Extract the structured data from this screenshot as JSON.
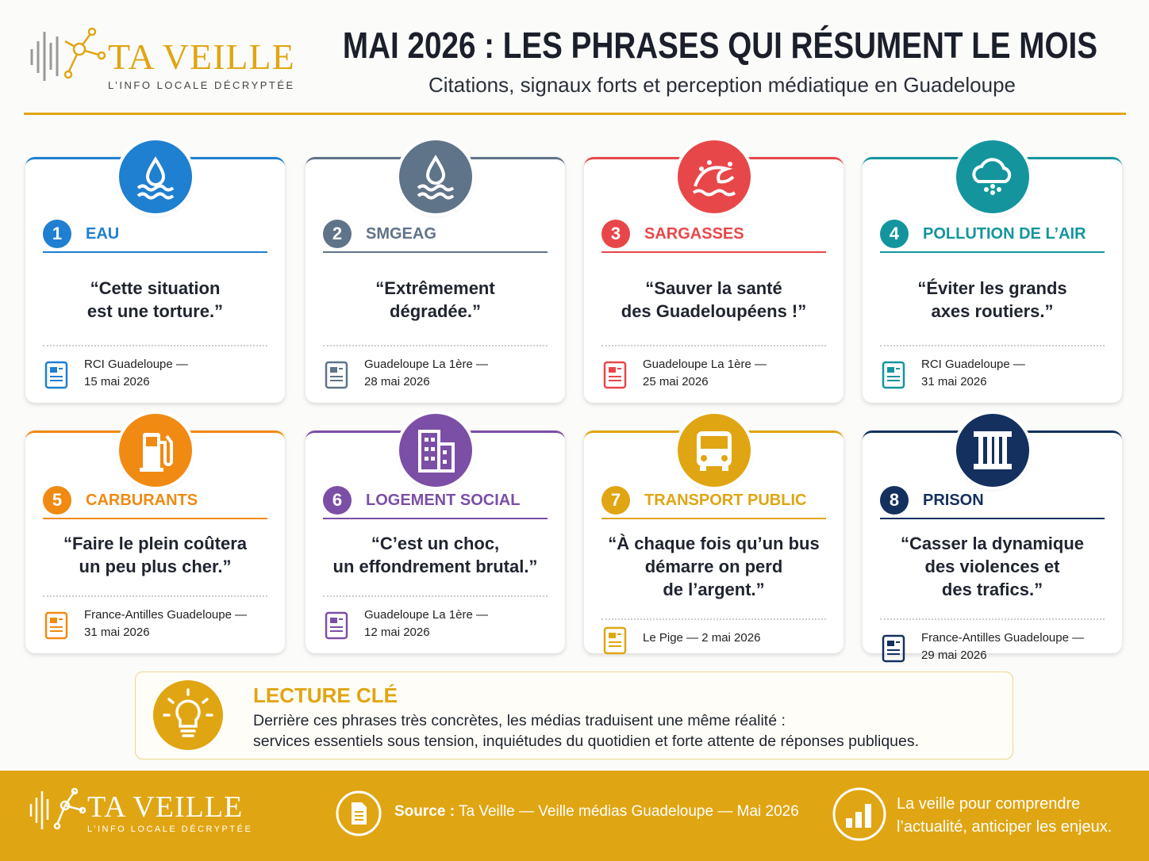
{
  "header": {
    "brand": "TA VEILLE",
    "tagline": "L’INFO LOCALE DÉCRYPTÉE",
    "title": "MAI 2026 : LES PHRASES QUI RÉSUMENT LE MOIS",
    "subtitle": "Citations, signaux forts et perception médiatique en Guadeloupe"
  },
  "cards": [
    {
      "number": "1",
      "label": "EAU",
      "color": "#1f7fd0",
      "quote": [
        "“Cette situation",
        "est une torture.”"
      ],
      "source": [
        "RCI Guadeloupe —",
        "15 mai 2026"
      ]
    },
    {
      "number": "2",
      "label": "SMGEAG",
      "color": "#5f7389",
      "quote": [
        "“Extrêmement",
        "dégradée.”"
      ],
      "source": [
        "Guadeloupe La 1ère —",
        "28 mai 2026"
      ]
    },
    {
      "number": "3",
      "label": "SARGASSES",
      "color": "#e8474a",
      "quote": [
        "“Sauver la santé",
        "des Guadeloupéens !”"
      ],
      "source": [
        "Guadeloupe La 1ère —",
        "25 mai 2026"
      ]
    },
    {
      "number": "4",
      "label": "POLLUTION DE L’AIR",
      "color": "#14959e",
      "quote": [
        "“Éviter les grands",
        "axes routiers.”"
      ],
      "source": [
        "RCI Guadeloupe —",
        "31 mai 2026"
      ]
    },
    {
      "number": "5",
      "label": "CARBURANTS",
      "color": "#f08a12",
      "quote": [
        "“Faire le plein coûtera",
        "un peu plus cher.”"
      ],
      "source": [
        "France-Antilles Guadeloupe —",
        "31 mai 2026"
      ]
    },
    {
      "number": "6",
      "label": "LOGEMENT SOCIAL",
      "color": "#7c4fa6",
      "quote": [
        "“C’est un choc,",
        "un effondrement brutal.”"
      ],
      "source": [
        "Guadeloupe La 1ère —",
        "12 mai 2026"
      ]
    },
    {
      "number": "7",
      "label": "TRANSPORT PUBLIC",
      "color": "#e0a512",
      "quote": [
        "“À chaque fois qu’un bus",
        "démarre on perd",
        "de l’argent.”"
      ],
      "source": [
        "Le Pige — 2 mai 2026"
      ]
    },
    {
      "number": "8",
      "label": "PRISON",
      "color": "#14305e",
      "quote": [
        "“Casser la dynamique",
        "des violences et",
        "des trafics.”"
      ],
      "source": [
        "France-Antilles Guadeloupe —",
        "29 mai 2026"
      ]
    }
  ],
  "key_reading": {
    "title": "LECTURE CLÉ",
    "lines": [
      "Derrière ces phrases très concrètes, les médias traduisent une même réalité :",
      "services essentiels sous tension, inquiétudes du quotidien et forte attente de réponses publiques."
    ]
  },
  "footer": {
    "brand": "TA VEILLE",
    "tagline": "L’INFO LOCALE DÉCRYPTÉE",
    "source_label": "Source :",
    "source_text": "Ta Veille — Veille médias Guadeloupe — Mai 2026",
    "slogan": [
      "La veille pour comprendre",
      "l’actualité, anticiper les enjeux."
    ]
  }
}
